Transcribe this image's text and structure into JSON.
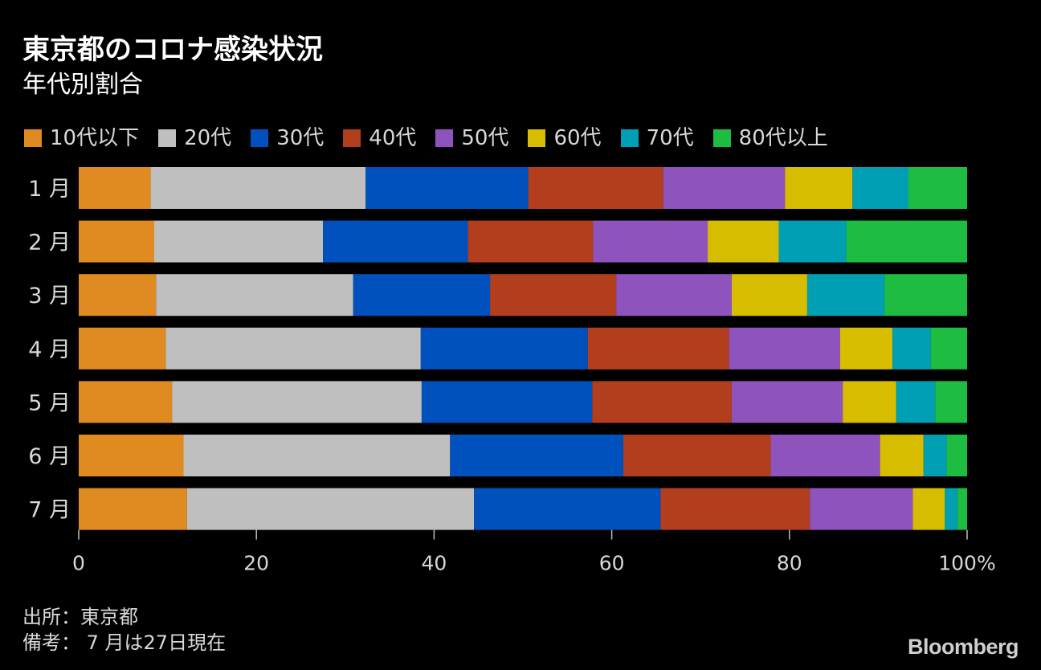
{
  "chart_data": {
    "type": "bar",
    "orientation": "horizontal",
    "stacked": true,
    "title": "東京都のコロナ感染状況",
    "subtitle": "年代別割合",
    "categories": [
      "1 月",
      "2 月",
      "3 月",
      "4 月",
      "5 月",
      "6 月",
      "7 月"
    ],
    "x_ticks": [
      "0",
      "20",
      "40",
      "60",
      "80",
      "100%"
    ],
    "xlim": [
      0,
      100
    ],
    "grid": false,
    "legend_position": "top",
    "series": [
      {
        "name": "10代以下",
        "color": "#e08a22",
        "values": [
          8.1,
          8.5,
          8.7,
          9.8,
          10.5,
          11.8,
          12.2
        ]
      },
      {
        "name": "20代",
        "color": "#bfbfbf",
        "values": [
          24.2,
          19.0,
          22.2,
          28.7,
          28.1,
          30.0,
          32.3
        ]
      },
      {
        "name": "30代",
        "color": "#0051bd",
        "values": [
          18.3,
          16.3,
          15.4,
          18.8,
          19.2,
          19.5,
          21.0
        ]
      },
      {
        "name": "40代",
        "color": "#b23e1e",
        "values": [
          15.2,
          14.1,
          14.2,
          15.9,
          15.7,
          16.6,
          16.8
        ]
      },
      {
        "name": "50代",
        "color": "#8f53be",
        "values": [
          13.7,
          12.9,
          13.0,
          12.5,
          12.5,
          12.3,
          11.6
        ]
      },
      {
        "name": "60代",
        "color": "#d7bd00",
        "values": [
          7.6,
          8.0,
          8.5,
          5.9,
          6.0,
          4.9,
          3.6
        ]
      },
      {
        "name": "70代",
        "color": "#009fb4",
        "values": [
          6.3,
          7.6,
          8.7,
          4.3,
          4.4,
          2.6,
          1.4
        ]
      },
      {
        "name": "80代以上",
        "color": "#1fbc42",
        "values": [
          6.6,
          13.6,
          9.3,
          4.1,
          3.6,
          2.3,
          1.1
        ]
      }
    ]
  },
  "notes": {
    "source": "出所：東京都",
    "remark": "備考：  7 月は27日現在"
  },
  "brand": "Bloomberg"
}
